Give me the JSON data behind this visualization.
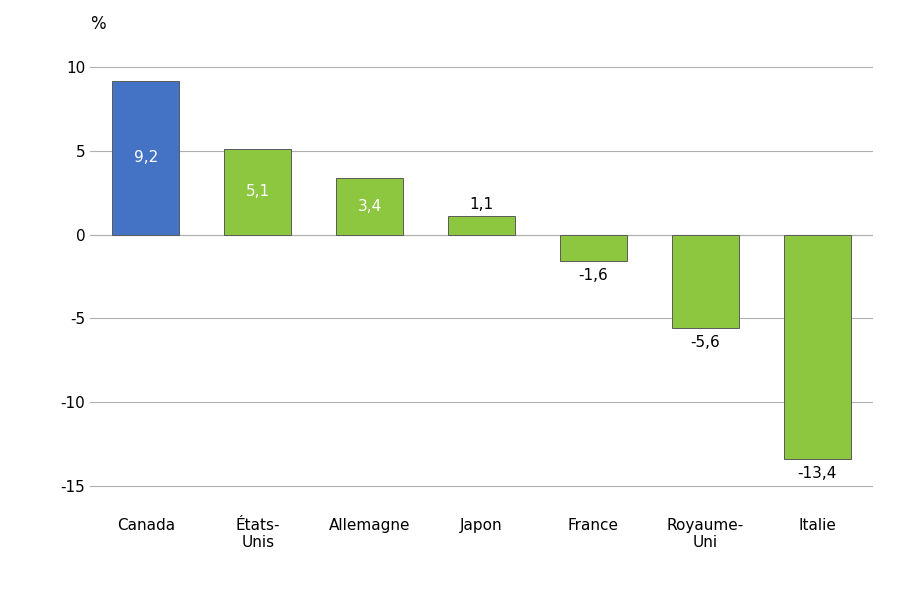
{
  "categories": [
    "Canada",
    "États-\nUnis",
    "Allemagne",
    "Japon",
    "France",
    "Royaume-\nUni",
    "Italie"
  ],
  "values": [
    9.2,
    5.1,
    3.4,
    1.1,
    -1.6,
    -5.6,
    -13.4
  ],
  "bar_colors": [
    "#4472c4",
    "#8dc63f",
    "#8dc63f",
    "#8dc63f",
    "#8dc63f",
    "#8dc63f",
    "#8dc63f"
  ],
  "label_colors_inside": [
    "#ffffff",
    "#ffffff",
    "#ffffff",
    "#000000",
    "#000000",
    "#000000",
    "#000000"
  ],
  "value_labels": [
    "9,2",
    "5,1",
    "3,4",
    "1,1",
    "-1,6",
    "-5,6",
    "-13,4"
  ],
  "ylabel": "%",
  "ylim": [
    -16.5,
    11.5
  ],
  "yticks": [
    -15,
    -10,
    -5,
    0,
    5,
    10
  ],
  "background_color": "#ffffff",
  "grid_color": "#b0b0b0",
  "bar_edge_color": "#5a5a5a",
  "label_fontsize": 11,
  "tick_fontsize": 11,
  "ylabel_fontsize": 12,
  "bar_width": 0.6
}
